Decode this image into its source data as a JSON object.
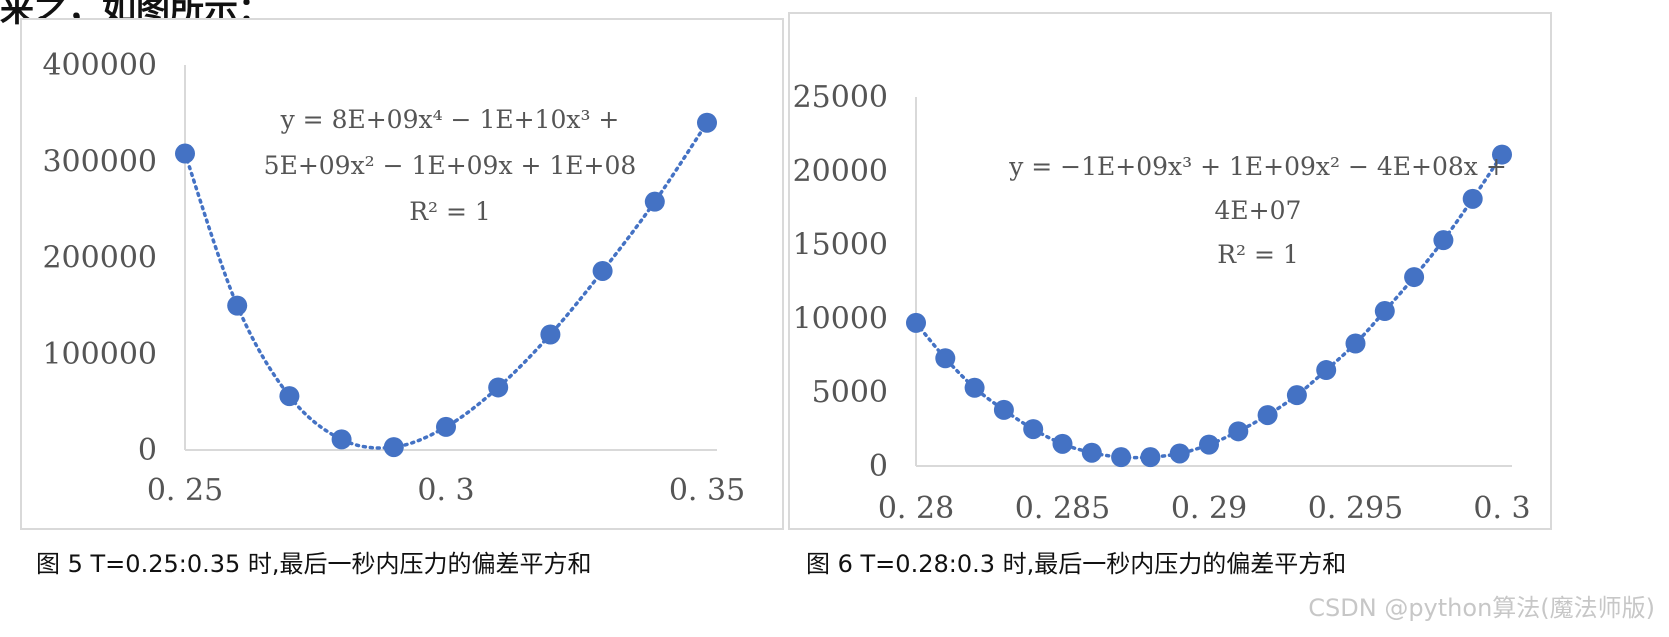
{
  "header_text": "来之，如图所示：",
  "chart_data": [
    {
      "type": "scatter",
      "marker_color": "#4472c4",
      "trendline": "polynomial order 4, dotted",
      "x": [
        0.25,
        0.26,
        0.27,
        0.28,
        0.29,
        0.3,
        0.31,
        0.32,
        0.33,
        0.34,
        0.35
      ],
      "y": [
        308000,
        150000,
        56000,
        11000,
        3000,
        24000,
        65000,
        120000,
        186000,
        258000,
        340000
      ],
      "xlim": [
        0.25,
        0.35
      ],
      "ylim": [
        0,
        400000
      ],
      "x_ticks": [
        {
          "value": 0.25,
          "label": "0. 25"
        },
        {
          "value": 0.3,
          "label": "0. 3"
        },
        {
          "value": 0.35,
          "label": "0. 35"
        }
      ],
      "y_ticks": [
        {
          "value": 0,
          "label": "0"
        },
        {
          "value": 100000,
          "label": "100000"
        },
        {
          "value": 200000,
          "label": "200000"
        },
        {
          "value": 300000,
          "label": "300000"
        },
        {
          "value": 400000,
          "label": "400000"
        }
      ],
      "trendline_equation_lines": [
        "y = 8E+09x⁴ − 1E+10x³ +",
        "5E+09x² − 1E+09x + 1E+08",
        "R² = 1"
      ],
      "caption": "图 5 T=0.25:0.35 时,最后一秒内压力的偏差平方和"
    },
    {
      "type": "scatter",
      "marker_color": "#4472c4",
      "trendline": "polynomial order 3, dotted",
      "x": [
        0.28,
        0.281,
        0.282,
        0.283,
        0.284,
        0.285,
        0.286,
        0.287,
        0.288,
        0.289,
        0.29,
        0.291,
        0.292,
        0.293,
        0.294,
        0.295,
        0.296,
        0.297,
        0.298,
        0.299,
        0.3
      ],
      "y": [
        9700,
        7300,
        5300,
        3800,
        2500,
        1500,
        900,
        600,
        600,
        850,
        1450,
        2350,
        3450,
        4800,
        6500,
        8300,
        10500,
        12800,
        15300,
        18100,
        21100
      ],
      "xlim": [
        0.28,
        0.3
      ],
      "ylim": [
        0,
        25000
      ],
      "x_ticks": [
        {
          "value": 0.28,
          "label": "0. 28"
        },
        {
          "value": 0.285,
          "label": "0. 285"
        },
        {
          "value": 0.29,
          "label": "0. 29"
        },
        {
          "value": 0.295,
          "label": "0. 295"
        },
        {
          "value": 0.3,
          "label": "0. 3"
        }
      ],
      "y_ticks": [
        {
          "value": 0,
          "label": "0"
        },
        {
          "value": 5000,
          "label": "5000"
        },
        {
          "value": 10000,
          "label": "10000"
        },
        {
          "value": 15000,
          "label": "15000"
        },
        {
          "value": 20000,
          "label": "20000"
        },
        {
          "value": 25000,
          "label": "25000"
        }
      ],
      "trendline_equation_lines": [
        "y = −1E+09x³ + 1E+09x² − 4E+08x +",
        "4E+07",
        "R² = 1"
      ],
      "caption": "图 6 T=0.28:0.3 时,最后一秒内压力的偏差平方和"
    }
  ],
  "watermark": "CSDN @python算法(魔法师版)"
}
